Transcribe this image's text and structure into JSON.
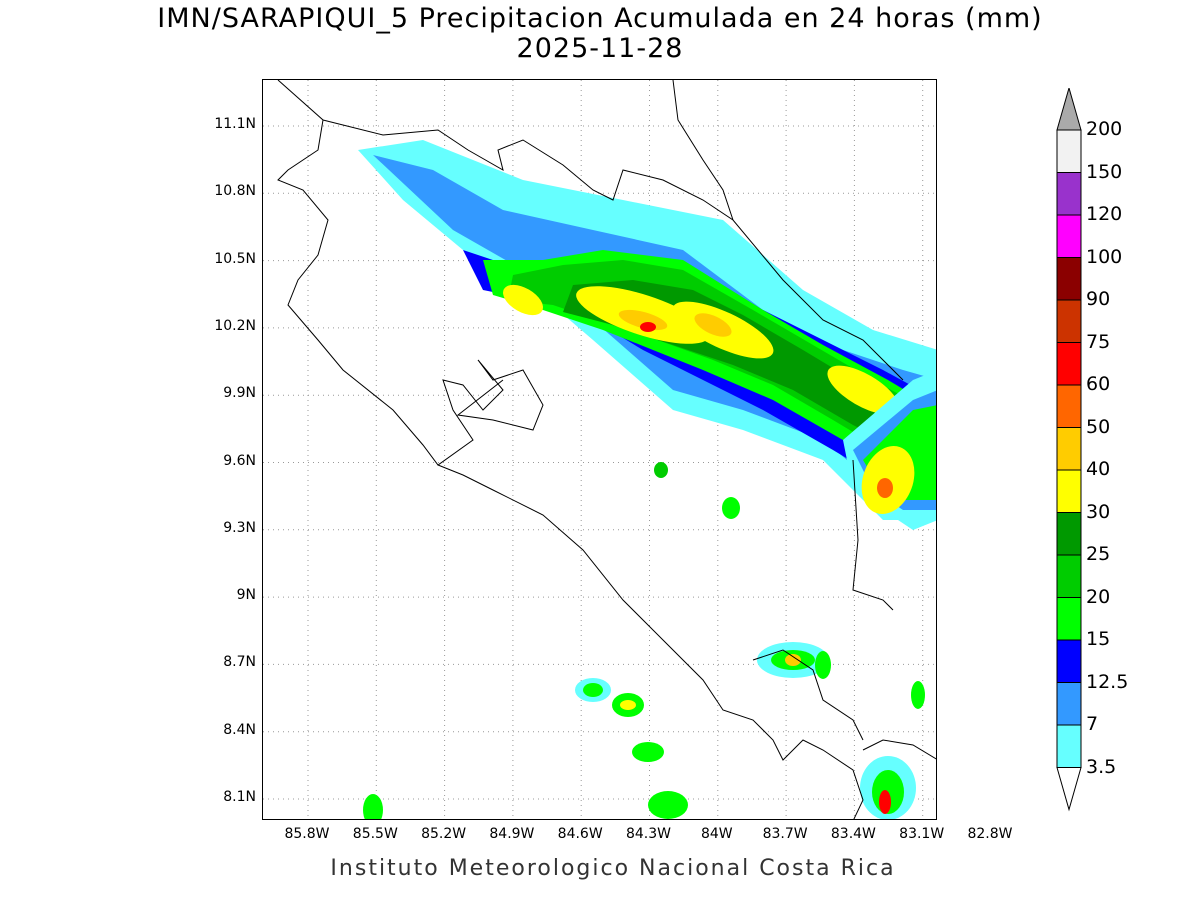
{
  "title": {
    "line1": "IMN/SARAPIQUI_5 Precipitacion Acumulada en 24 horas (mm)",
    "line2": "2025-11-28"
  },
  "footer": "Instituto Meteorologico Nacional Costa Rica",
  "map": {
    "lat_range": [
      8.0,
      11.3
    ],
    "lon_range": [
      -85.9,
      -82.9
    ],
    "lat_ticks": [
      "11.1N",
      "10.8N",
      "10.5N",
      "10.2N",
      "9.9N",
      "9.6N",
      "9.3N",
      "9N",
      "8.7N",
      "8.4N",
      "8.1N"
    ],
    "lon_ticks": [
      "85.8W",
      "85.5W",
      "85.2W",
      "84.9W",
      "84.6W",
      "84.3W",
      "84W",
      "83.7W",
      "83.4W",
      "83.1W",
      "82.8W"
    ],
    "gridlines": "dotted"
  },
  "colorbar": {
    "levels": [
      "200",
      "150",
      "120",
      "100",
      "90",
      "75",
      "60",
      "50",
      "40",
      "30",
      "25",
      "20",
      "15",
      "12.5",
      "7",
      "3.5"
    ],
    "colors": [
      "#f2f2f2",
      "#9932cc",
      "#ff00ff",
      "#8b0000",
      "#cc3300",
      "#ff0000",
      "#ff6600",
      "#ffcc00",
      "#ffff00",
      "#009900",
      "#00cc00",
      "#00ff00",
      "#0000ff",
      "#3399ff",
      "#66ffff"
    ],
    "top_arrow_color": "#aaaaaa",
    "bottom_arrow_color": "#ffffff"
  }
}
